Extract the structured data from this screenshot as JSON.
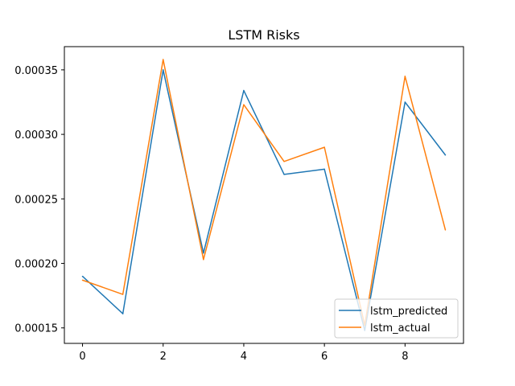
{
  "chart_data": {
    "type": "line",
    "title": "LSTM Risks",
    "xlabel": "",
    "ylabel": "",
    "x": [
      0,
      1,
      2,
      3,
      4,
      5,
      6,
      7,
      8,
      9
    ],
    "xlim": [
      -0.45,
      9.45
    ],
    "ylim": [
      0.000138,
      0.000368
    ],
    "x_ticks": [
      0,
      2,
      4,
      6,
      8
    ],
    "x_tick_labels": [
      "0",
      "2",
      "4",
      "6",
      "8"
    ],
    "y_ticks": [
      0.00015,
      0.0002,
      0.00025,
      0.0003,
      0.00035
    ],
    "y_tick_labels": [
      "0.00015",
      "0.00020",
      "0.00025",
      "0.00030",
      "0.00035"
    ],
    "grid": false,
    "legend_position": "lower-right",
    "series": [
      {
        "name": "lstm_predicted",
        "color": "#1f77b4",
        "values": [
          0.00019,
          0.000161,
          0.00035,
          0.000208,
          0.000334,
          0.000269,
          0.000273,
          0.000148,
          0.000325,
          0.000284
        ]
      },
      {
        "name": "lstm_actual",
        "color": "#ff7f0e",
        "values": [
          0.000187,
          0.000176,
          0.000358,
          0.000203,
          0.000323,
          0.000279,
          0.00029,
          0.000152,
          0.000345,
          0.000226
        ]
      }
    ]
  }
}
